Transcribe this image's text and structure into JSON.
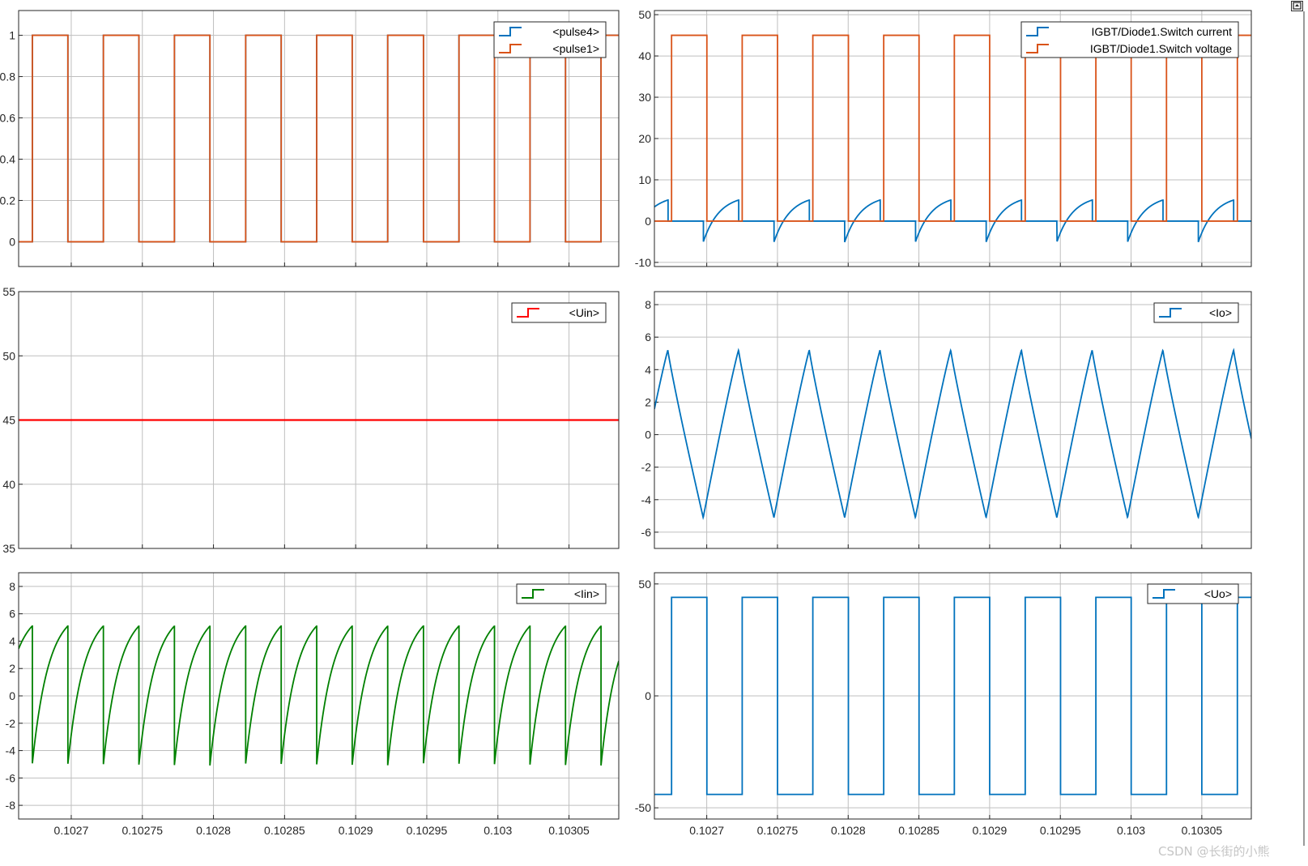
{
  "window": {
    "watermark": "CSDN @长街的小熊",
    "restore_icon": "restore-icon"
  },
  "colors": {
    "blue": "#0072BD",
    "orange": "#D95319",
    "red": "#FF0000",
    "green": "#008000",
    "grid": "#bfbfbf",
    "axis": "#262626"
  },
  "chart_data": [
    {
      "id": "pulses",
      "type": "line",
      "xlim": [
        0.102663,
        0.103085
      ],
      "ylim": [
        -0.12,
        1.12
      ],
      "yticks": [
        0,
        0.2,
        0.4,
        0.6,
        0.8,
        1
      ],
      "ytick_labels": [
        "0",
        "0.2",
        "0.4",
        "0.6",
        "0.8",
        "1"
      ],
      "xticks": [
        0.1027,
        0.10275,
        0.1028,
        0.10285,
        0.1029,
        0.10295,
        0.103,
        0.10305
      ],
      "xtick_labels": [],
      "legend": "top-right",
      "period": 5e-05,
      "series": [
        {
          "name": "<pulse4>",
          "color": "#0072BD",
          "kind": "square",
          "high": 1,
          "low": 0,
          "rise_phase": 0.1026725,
          "duty": 0.5
        },
        {
          "name": "<pulse1>",
          "color": "#D95319",
          "kind": "square",
          "high": 1,
          "low": 0,
          "rise_phase": 0.1026725,
          "duty": 0.5
        }
      ]
    },
    {
      "id": "switch",
      "type": "line",
      "xlim": [
        0.102663,
        0.103085
      ],
      "ylim": [
        -11,
        51
      ],
      "yticks": [
        -10,
        0,
        10,
        20,
        30,
        40,
        50
      ],
      "ytick_labels": [
        "-10",
        "0",
        "10",
        "20",
        "30",
        "40",
        "50"
      ],
      "xticks": [
        0.1027,
        0.10275,
        0.1028,
        0.10285,
        0.1029,
        0.10295,
        0.103,
        0.10305
      ],
      "xtick_labels": [],
      "legend": "top-right",
      "period": 5e-05,
      "series": [
        {
          "name": "IGBT/Diode1.Switch current",
          "color": "#0072BD",
          "kind": "switch_current",
          "rise_phase": 0.1026725,
          "peak": 5.1,
          "neg": -5.1
        },
        {
          "name": "IGBT/Diode1.Switch voltage",
          "color": "#D95319",
          "kind": "square",
          "high": 45,
          "low": 0,
          "rise_phase": 0.102675,
          "duty": 0.5
        }
      ]
    },
    {
      "id": "uin",
      "type": "line",
      "xlim": [
        0.102663,
        0.103085
      ],
      "ylim": [
        35,
        55
      ],
      "yticks": [
        35,
        40,
        45,
        50,
        55
      ],
      "ytick_labels": [
        "35",
        "40",
        "45",
        "50",
        "55"
      ],
      "xticks": [
        0.1027,
        0.10275,
        0.1028,
        0.10285,
        0.1029,
        0.10295,
        0.103,
        0.10305
      ],
      "xtick_labels": [],
      "legend": "top-right",
      "series": [
        {
          "name": "<Uin>",
          "color": "#FF0000",
          "kind": "const",
          "value": 45
        }
      ]
    },
    {
      "id": "io",
      "type": "line",
      "xlim": [
        0.102663,
        0.103085
      ],
      "ylim": [
        -7,
        8.8
      ],
      "yticks": [
        -6,
        -4,
        -2,
        0,
        2,
        4,
        6,
        8
      ],
      "ytick_labels": [
        "-6",
        "-4",
        "-2",
        "0",
        "2",
        "4",
        "6",
        "8"
      ],
      "xticks": [
        0.1027,
        0.10275,
        0.1028,
        0.10285,
        0.1029,
        0.10295,
        0.103,
        0.10305
      ],
      "xtick_labels": [],
      "legend": "top-right",
      "period": 5e-05,
      "series": [
        {
          "name": "<Io>",
          "color": "#0072BD",
          "kind": "triangle",
          "peak_phase": 0.1026725,
          "peak": 5.2,
          "trough": -5.1
        }
      ]
    },
    {
      "id": "iin",
      "type": "line",
      "xlim": [
        0.102663,
        0.103085
      ],
      "ylim": [
        -9,
        9
      ],
      "yticks": [
        -8,
        -6,
        -4,
        -2,
        0,
        2,
        4,
        6,
        8
      ],
      "ytick_labels": [
        "-8",
        "-6",
        "-4",
        "-2",
        "0",
        "2",
        "4",
        "6",
        "8"
      ],
      "xticks": [
        0.1027,
        0.10275,
        0.1028,
        0.10285,
        0.1029,
        0.10295,
        0.103,
        0.10305
      ],
      "xtick_labels": [
        "0.1027",
        "0.10275",
        "0.1028",
        "0.10285",
        "0.1029",
        "0.10295",
        "0.103",
        "0.10305"
      ],
      "legend": "top-right",
      "period": 2.5e-05,
      "series": [
        {
          "name": "<Iin>",
          "color": "#008000",
          "kind": "sawtooth",
          "peak_phase": 0.1026725,
          "peak": 5.1,
          "trough": -5.1
        }
      ]
    },
    {
      "id": "uo",
      "type": "line",
      "xlim": [
        0.102663,
        0.103085
      ],
      "ylim": [
        -55,
        55
      ],
      "yticks": [
        -50,
        0,
        50
      ],
      "ytick_labels": [
        "-50",
        "0",
        "50"
      ],
      "xticks": [
        0.1027,
        0.10275,
        0.1028,
        0.10285,
        0.1029,
        0.10295,
        0.103,
        0.10305
      ],
      "xtick_labels": [
        "0.1027",
        "0.10275",
        "0.1028",
        "0.10285",
        "0.1029",
        "0.10295",
        "0.103",
        "0.10305"
      ],
      "legend": "top-right",
      "period": 5e-05,
      "series": [
        {
          "name": "<Uo>",
          "color": "#0072BD",
          "kind": "square",
          "high": 44,
          "low": -44,
          "rise_phase": 0.102675,
          "duty": 0.5
        }
      ]
    }
  ]
}
